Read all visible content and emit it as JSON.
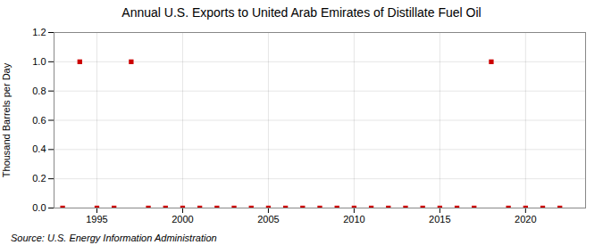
{
  "chart_data": {
    "type": "scatter",
    "title": "Annual U.S. Exports to United Arab Emirates of Distillate Fuel Oil",
    "ylabel": "Thousand Barrels per Day",
    "annotation": "Source: U.S. Energy Information Administration",
    "x": [
      1993,
      1994,
      1995,
      1996,
      1997,
      1998,
      1999,
      2000,
      2001,
      2002,
      2003,
      2004,
      2005,
      2006,
      2007,
      2008,
      2009,
      2010,
      2011,
      2012,
      2013,
      2014,
      2015,
      2016,
      2017,
      2018,
      2019,
      2020,
      2021,
      2022
    ],
    "values": [
      0,
      1,
      0,
      0,
      1,
      0,
      0,
      0,
      0,
      0,
      0,
      0,
      0,
      0,
      0,
      0,
      0,
      0,
      0,
      0,
      0,
      0,
      0,
      0,
      0,
      1,
      0,
      0,
      0,
      0
    ],
    "color": "#cc0000",
    "marker": "square",
    "xlim": [
      1992.5,
      2023.5
    ],
    "xticks": [
      1995,
      2000,
      2005,
      2010,
      2015,
      2020
    ],
    "ylim": [
      0.0,
      1.2
    ],
    "yticks": [
      {
        "value": 0.0,
        "label": "0.0"
      },
      0.2,
      0.4,
      0.6,
      0.8,
      {
        "value": 1.0,
        "label": "1.0"
      },
      1.2
    ],
    "grid": true
  }
}
